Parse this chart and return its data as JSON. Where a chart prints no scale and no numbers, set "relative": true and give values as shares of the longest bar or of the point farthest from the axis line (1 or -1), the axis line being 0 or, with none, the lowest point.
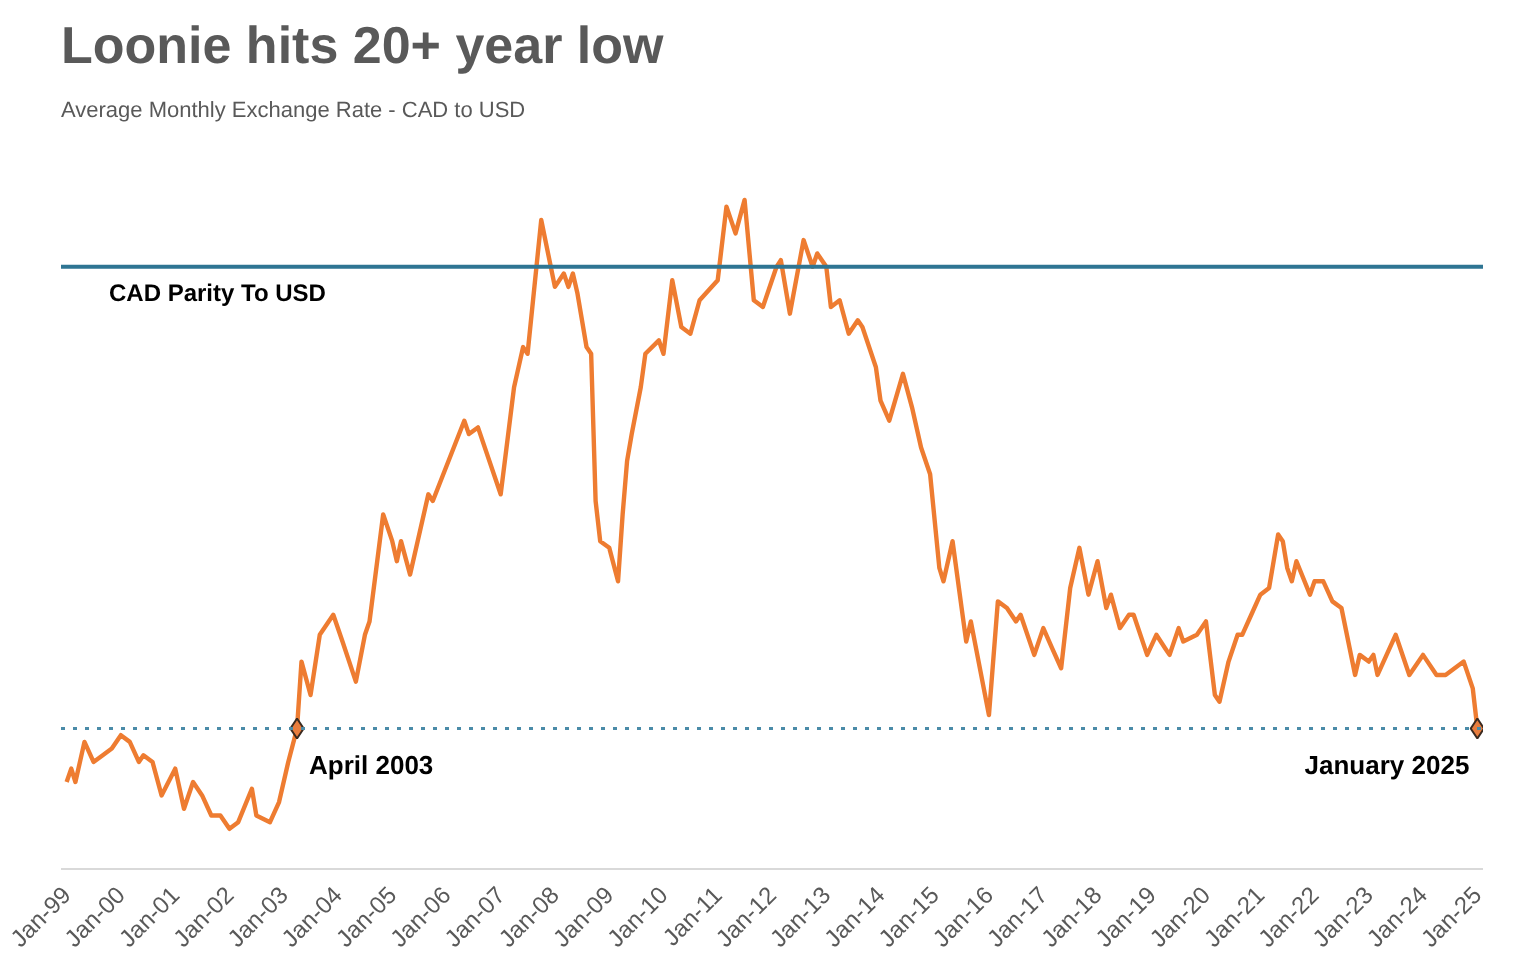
{
  "chart_data": {
    "type": "line",
    "title": "Loonie hits 20+ year low",
    "subtitle": "Average Monthly Exchange Rate - CAD to USD",
    "relative": true,
    "grid": false,
    "xlim": [
      "1999-01",
      "2025-01"
    ],
    "xticks": [
      {
        "value": "1999-01",
        "label": "Jan-99"
      },
      {
        "value": "2000-01",
        "label": "Jan-00"
      },
      {
        "value": "2001-01",
        "label": "Jan-01"
      },
      {
        "value": "2002-01",
        "label": "Jan-02"
      },
      {
        "value": "2003-01",
        "label": "Jan-03"
      },
      {
        "value": "2004-01",
        "label": "Jan-04"
      },
      {
        "value": "2005-01",
        "label": "Jan-05"
      },
      {
        "value": "2006-01",
        "label": "Jan-06"
      },
      {
        "value": "2007-01",
        "label": "Jan-07"
      },
      {
        "value": "2008-01",
        "label": "Jan-08"
      },
      {
        "value": "2009-01",
        "label": "Jan-09"
      },
      {
        "value": "2010-01",
        "label": "Jan-10"
      },
      {
        "value": "2011-01",
        "label": "Jan-11"
      },
      {
        "value": "2012-01",
        "label": "Jan-12"
      },
      {
        "value": "2013-01",
        "label": "Jan-13"
      },
      {
        "value": "2014-01",
        "label": "Jan-14"
      },
      {
        "value": "2015-01",
        "label": "Jan-15"
      },
      {
        "value": "2016-01",
        "label": "Jan-16"
      },
      {
        "value": "2017-01",
        "label": "Jan-17"
      },
      {
        "value": "2018-01",
        "label": "Jan-18"
      },
      {
        "value": "2019-01",
        "label": "Jan-19"
      },
      {
        "value": "2020-01",
        "label": "Jan-20"
      },
      {
        "value": "2021-01",
        "label": "Jan-21"
      },
      {
        "value": "2022-01",
        "label": "Jan-22"
      },
      {
        "value": "2023-01",
        "label": "Jan-23"
      },
      {
        "value": "2024-01",
        "label": "Jan-24"
      },
      {
        "value": "2025-01",
        "label": "Jan-25"
      }
    ],
    "series": [
      {
        "color": "#ee7c31",
        "x": [
          "1999-01",
          "1999-02",
          "1999-03",
          "1999-05",
          "1999-07",
          "1999-09",
          "1999-11",
          "2000-01",
          "2000-03",
          "2000-05",
          "2000-06",
          "2000-08",
          "2000-10",
          "2001-01",
          "2001-03",
          "2001-05",
          "2001-07",
          "2001-09",
          "2001-11",
          "2002-01",
          "2002-03",
          "2002-06",
          "2002-07",
          "2002-10",
          "2002-12",
          "2003-02",
          "2003-04",
          "2003-05",
          "2003-07",
          "2003-09",
          "2003-12",
          "2004-02",
          "2004-05",
          "2004-07",
          "2004-08",
          "2004-11",
          "2005-01",
          "2005-02",
          "2005-03",
          "2005-05",
          "2005-09",
          "2005-10",
          "2006-05",
          "2006-06",
          "2006-08",
          "2007-01",
          "2007-04",
          "2007-06",
          "2007-07",
          "2007-10",
          "2008-01",
          "2008-03",
          "2008-04",
          "2008-05",
          "2008-06",
          "2008-08",
          "2008-09",
          "2008-10",
          "2008-11",
          "2009-01",
          "2009-03",
          "2009-04",
          "2009-05",
          "2009-06",
          "2009-08",
          "2009-09",
          "2009-12",
          "2010-01",
          "2010-03",
          "2010-05",
          "2010-07",
          "2010-09",
          "2011-01",
          "2011-03",
          "2011-05",
          "2011-07",
          "2011-09",
          "2011-11",
          "2012-02",
          "2012-03",
          "2012-05",
          "2012-08",
          "2012-10",
          "2012-11",
          "2013-01",
          "2013-02",
          "2013-04",
          "2013-06",
          "2013-08",
          "2013-09",
          "2013-12",
          "2014-01",
          "2014-03",
          "2014-06",
          "2014-08",
          "2014-10",
          "2014-12",
          "2015-02",
          "2015-03",
          "2015-05",
          "2015-07",
          "2015-08",
          "2015-09",
          "2016-01",
          "2016-03",
          "2016-05",
          "2016-07",
          "2016-08",
          "2016-11",
          "2017-01",
          "2017-03",
          "2017-05",
          "2017-07",
          "2017-09",
          "2017-11",
          "2018-01",
          "2018-03",
          "2018-04",
          "2018-06",
          "2018-08",
          "2018-09",
          "2018-12",
          "2019-02",
          "2019-04",
          "2019-05",
          "2019-07",
          "2019-08",
          "2019-11",
          "2020-01",
          "2020-03",
          "2020-04",
          "2020-06",
          "2020-08",
          "2020-09",
          "2020-11",
          "2021-01",
          "2021-03",
          "2021-05",
          "2021-06",
          "2021-07",
          "2021-08",
          "2021-09",
          "2021-12",
          "2022-01",
          "2022-03",
          "2022-05",
          "2022-07",
          "2022-10",
          "2022-11",
          "2023-01",
          "2023-02",
          "2023-03",
          "2023-05",
          "2023-07",
          "2023-10",
          "2024-01",
          "2024-04",
          "2024-06",
          "2024-10",
          "2024-12",
          "2025-01"
        ],
        "values": [
          0.13,
          0.15,
          0.13,
          0.19,
          0.16,
          0.17,
          0.18,
          0.2,
          0.19,
          0.16,
          0.17,
          0.16,
          0.11,
          0.15,
          0.09,
          0.13,
          0.11,
          0.08,
          0.08,
          0.06,
          0.07,
          0.12,
          0.08,
          0.07,
          0.1,
          0.16,
          0.21,
          0.31,
          0.26,
          0.35,
          0.38,
          0.34,
          0.28,
          0.35,
          0.37,
          0.53,
          0.49,
          0.46,
          0.49,
          0.44,
          0.56,
          0.55,
          0.67,
          0.65,
          0.66,
          0.56,
          0.72,
          0.78,
          0.77,
          0.97,
          0.87,
          0.89,
          0.87,
          0.89,
          0.86,
          0.78,
          0.77,
          0.55,
          0.49,
          0.48,
          0.43,
          0.53,
          0.61,
          0.65,
          0.72,
          0.77,
          0.79,
          0.77,
          0.88,
          0.81,
          0.8,
          0.85,
          0.88,
          0.99,
          0.95,
          1.0,
          0.85,
          0.84,
          0.9,
          0.91,
          0.83,
          0.94,
          0.9,
          0.92,
          0.9,
          0.84,
          0.85,
          0.8,
          0.82,
          0.81,
          0.75,
          0.7,
          0.67,
          0.74,
          0.69,
          0.63,
          0.59,
          0.45,
          0.43,
          0.49,
          0.39,
          0.34,
          0.37,
          0.23,
          0.4,
          0.39,
          0.37,
          0.38,
          0.32,
          0.36,
          0.33,
          0.3,
          0.42,
          0.48,
          0.41,
          0.46,
          0.39,
          0.41,
          0.36,
          0.38,
          0.38,
          0.32,
          0.35,
          0.33,
          0.32,
          0.36,
          0.34,
          0.35,
          0.37,
          0.26,
          0.25,
          0.31,
          0.35,
          0.35,
          0.38,
          0.41,
          0.42,
          0.5,
          0.49,
          0.45,
          0.43,
          0.46,
          0.41,
          0.43,
          0.43,
          0.4,
          0.39,
          0.29,
          0.32,
          0.31,
          0.32,
          0.29,
          0.32,
          0.35,
          0.29,
          0.32,
          0.29,
          0.29,
          0.31,
          0.27,
          0.21
        ]
      }
    ],
    "ref_lines": [
      {
        "axis": "y",
        "value": 0.9,
        "label": "CAD Parity To USD",
        "color": "#2e7593",
        "line_style": "solid"
      },
      {
        "axis": "y",
        "value": 0.21,
        "color": "#4a8ba8",
        "line_style": "dotted"
      }
    ],
    "annotations": [
      {
        "text": "April 2003",
        "x": "2003-04",
        "y": 0.21
      },
      {
        "text": "January 2025",
        "x": "2025-01",
        "y": 0.21
      }
    ]
  }
}
